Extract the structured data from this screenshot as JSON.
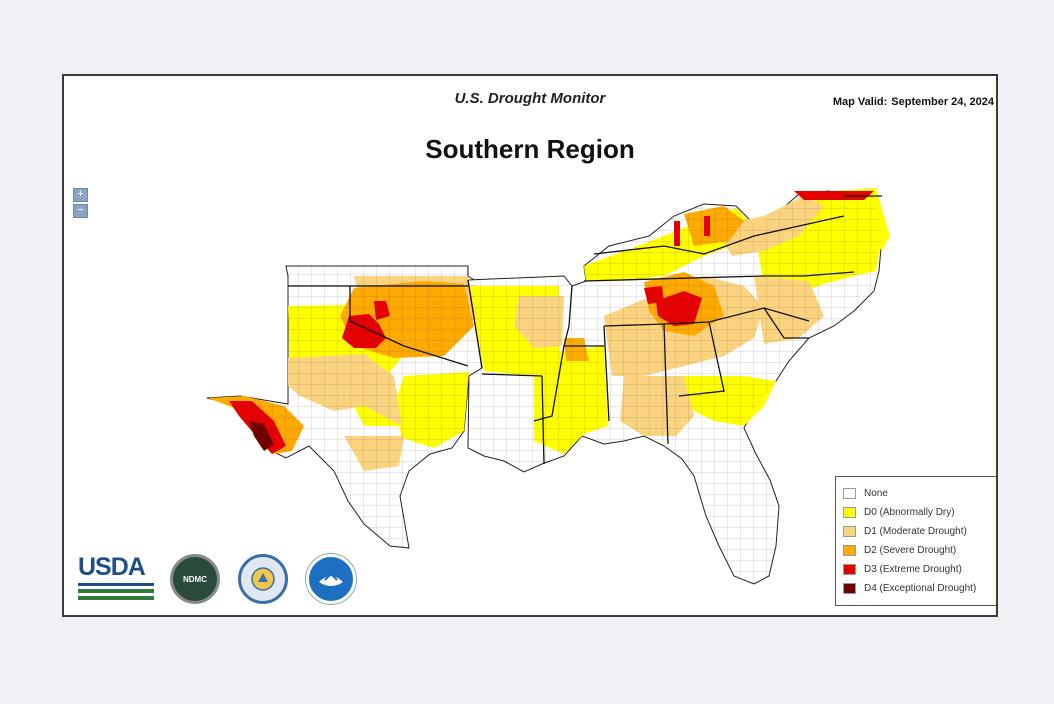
{
  "header": {
    "title": "U.S. Drought Monitor",
    "valid_label": "Map Valid:",
    "valid_date": "September 24, 2024"
  },
  "region_title": "Southern Region",
  "zoom": {
    "in_label": "+",
    "out_label": "−"
  },
  "legend": [
    {
      "label": "None",
      "color": "#ffffff"
    },
    {
      "label": "D0 (Abnormally Dry)",
      "color": "#ffff00"
    },
    {
      "label": "D1 (Moderate Drought)",
      "color": "#fcd37f"
    },
    {
      "label": "D2 (Severe Drought)",
      "color": "#ffaa00"
    },
    {
      "label": "D3 (Extreme Drought)",
      "color": "#e60000"
    },
    {
      "label": "D4 (Exceptional Drought)",
      "color": "#730000"
    }
  ],
  "logos": {
    "usda": "USDA",
    "ndmc": "NDMC"
  },
  "icons": [
    "usda-logo",
    "ndmc-logo",
    "commerce-seal-icon",
    "noaa-logo"
  ]
}
